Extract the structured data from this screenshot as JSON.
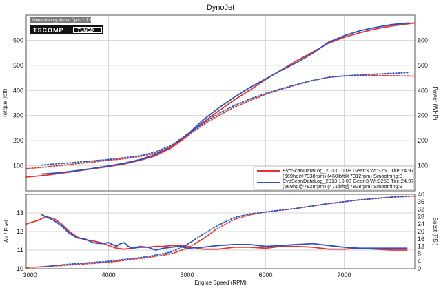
{
  "title": "DynoJet",
  "credit": "Generated by Virtual Dyno 1.3.5",
  "logo": {
    "text": "TSCOMP",
    "tag": "TUNED"
  },
  "colors": {
    "run1": "#e8312a",
    "run2": "#2653c9",
    "grid": "#c8c8c8",
    "frame": "#555555",
    "credit_bg": "#7a7a7a",
    "logo_bg": "#111111"
  },
  "chart_data": [
    {
      "type": "line",
      "title": "DynoJet",
      "xlabel": "Engine Speed (RPM)",
      "ylabel": "Torque (lbft)",
      "ylabel_right": "Power (WHP)",
      "xlim": [
        2950,
        7900
      ],
      "ylim": [
        0,
        700
      ],
      "ylim_right": [
        0,
        700
      ],
      "x_ticks": [
        3000,
        4000,
        5000,
        6000,
        7000
      ],
      "y_ticks": [
        100,
        200,
        300,
        400,
        500,
        600
      ],
      "y_ticks_right": [
        100,
        200,
        300,
        400,
        500,
        600
      ],
      "grid": true,
      "legend_position": "bottom-right",
      "legend": [
        "EvoScanDataLog_2013.10.08 Gear:3 Wt:3250 Tire:24.97\n(669hp@7938rpm) (460lbft@7312rpm) Smoothing:3",
        "EvoScanDataLog_2013.10.08 Gear:3 Wt:3250 Tire:24.97\n(669hp@7828rpm) (471lbft@7828rpm) Smoothing:3"
      ],
      "series": [
        {
          "color": "#e8312a",
          "style": "solid",
          "axis": "right",
          "x": [
            2950,
            3200,
            3500,
            3800,
            4000,
            4200,
            4400,
            4600,
            4800,
            5000,
            5200,
            5400,
            5600,
            5800,
            6000,
            6200,
            6400,
            6600,
            6800,
            7000,
            7200,
            7400,
            7600,
            7800,
            7900
          ],
          "y": [
            55,
            62,
            75,
            88,
            97,
            107,
            122,
            140,
            172,
            218,
            273,
            318,
            362,
            402,
            444,
            482,
            519,
            553,
            588,
            612,
            630,
            645,
            657,
            665,
            669
          ]
        },
        {
          "color": "#2653c9",
          "style": "solid",
          "axis": "right",
          "x": [
            3150,
            3400,
            3700,
            4000,
            4200,
            4400,
            4600,
            4800,
            5000,
            5200,
            5400,
            5600,
            5800,
            6000,
            6200,
            6400,
            6600,
            6800,
            7000,
            7200,
            7400,
            7600,
            7828
          ],
          "y": [
            67,
            73,
            85,
            99,
            110,
            125,
            145,
            178,
            223,
            282,
            330,
            373,
            412,
            446,
            480,
            512,
            548,
            592,
            618,
            638,
            651,
            662,
            669
          ]
        },
        {
          "color": "#e8312a",
          "style": "dotted",
          "axis": "left",
          "x": [
            2950,
            3200,
            3500,
            3800,
            4000,
            4200,
            4400,
            4600,
            4800,
            5000,
            5200,
            5400,
            5600,
            5800,
            6000,
            6200,
            6400,
            6600,
            6800,
            7000,
            7312,
            7600,
            7900
          ],
          "y": [
            88,
            95,
            105,
            115,
            122,
            128,
            137,
            150,
            178,
            218,
            262,
            300,
            333,
            360,
            385,
            405,
            423,
            440,
            452,
            458,
            460,
            459,
            457
          ]
        },
        {
          "color": "#2653c9",
          "style": "dotted",
          "axis": "left",
          "x": [
            3150,
            3400,
            3700,
            4000,
            4200,
            4400,
            4600,
            4800,
            5000,
            5200,
            5400,
            5600,
            5800,
            6000,
            6200,
            6400,
            6600,
            6800,
            7000,
            7200,
            7400,
            7600,
            7828
          ],
          "y": [
            103,
            109,
            117,
            125,
            132,
            140,
            155,
            182,
            225,
            268,
            308,
            340,
            366,
            388,
            407,
            424,
            440,
            452,
            458,
            462,
            465,
            468,
            471
          ]
        }
      ]
    },
    {
      "type": "line",
      "xlabel": "Engine Speed (RPM)",
      "ylabel": "Air / Fuel",
      "ylabel_right": "Boost (PSI)",
      "xlim": [
        2950,
        7900
      ],
      "ylim": [
        10,
        14
      ],
      "ylim_right": [
        0,
        40
      ],
      "x_ticks": [
        3000,
        4000,
        5000,
        6000,
        7000
      ],
      "y_ticks": [
        10,
        11,
        12,
        13
      ],
      "y_ticks_right": [
        0,
        4,
        8,
        12,
        16,
        20,
        24,
        28,
        32,
        36,
        40
      ],
      "grid": true,
      "series": [
        {
          "color": "#e8312a",
          "style": "solid",
          "axis": "left",
          "x": [
            2950,
            3100,
            3200,
            3300,
            3400,
            3500,
            3600,
            3700,
            3800,
            3900,
            4000,
            4100,
            4200,
            4300,
            4400,
            4500,
            4600,
            4700,
            4800,
            4900,
            5000,
            5200,
            5400,
            5600,
            5800,
            6000,
            6200,
            6400,
            6600,
            6800,
            7000,
            7200,
            7400,
            7600,
            7800
          ],
          "y": [
            12.4,
            12.6,
            12.8,
            12.7,
            12.4,
            12.0,
            11.7,
            11.55,
            11.5,
            11.4,
            11.25,
            11.1,
            11.05,
            11.1,
            11.2,
            11.15,
            11.2,
            11.2,
            11.25,
            11.25,
            11.2,
            11.05,
            11.05,
            11.15,
            11.15,
            11.1,
            11.2,
            11.2,
            11.15,
            11.05,
            11.05,
            11.1,
            11.05,
            11.0,
            11.0
          ]
        },
        {
          "color": "#2653c9",
          "style": "solid",
          "axis": "left",
          "x": [
            3150,
            3200,
            3300,
            3400,
            3500,
            3600,
            3700,
            3800,
            3900,
            4000,
            4100,
            4150,
            4200,
            4250,
            4300,
            4400,
            4500,
            4600,
            4700,
            4800,
            4900,
            5000,
            5200,
            5400,
            5600,
            5800,
            6000,
            6200,
            6400,
            6600,
            6800,
            7000,
            7200,
            7400,
            7600,
            7800
          ],
          "y": [
            12.9,
            12.8,
            12.6,
            12.3,
            11.9,
            11.65,
            11.6,
            11.4,
            11.35,
            11.4,
            11.2,
            11.35,
            11.4,
            11.2,
            11.1,
            11.15,
            11.15,
            11.0,
            11.1,
            11.15,
            11.2,
            11.1,
            11.15,
            11.25,
            11.3,
            11.3,
            11.2,
            11.25,
            11.3,
            11.35,
            11.25,
            11.15,
            11.1,
            11.1,
            11.1,
            11.1
          ]
        },
        {
          "color": "#e8312a",
          "style": "dotted",
          "axis": "right",
          "x": [
            2950,
            3500,
            4000,
            4500,
            4800,
            5000,
            5200,
            5400,
            5600,
            5800,
            6000,
            6400,
            6800,
            7200,
            7600,
            7900
          ],
          "y": [
            0.5,
            2,
            3.5,
            6,
            8,
            11,
            16,
            22,
            26.5,
            29,
            30.5,
            32.5,
            35,
            37,
            38.5,
            39
          ]
        },
        {
          "color": "#2653c9",
          "style": "dotted",
          "axis": "right",
          "x": [
            3150,
            3500,
            4000,
            4500,
            4800,
            5000,
            5200,
            5400,
            5600,
            5800,
            6000,
            6400,
            6800,
            7200,
            7600,
            7828
          ],
          "y": [
            1,
            2.5,
            4,
            6.5,
            9,
            13,
            18.5,
            23.5,
            27.5,
            29.5,
            30.5,
            32.5,
            35,
            37,
            38.5,
            39
          ]
        }
      ]
    }
  ]
}
